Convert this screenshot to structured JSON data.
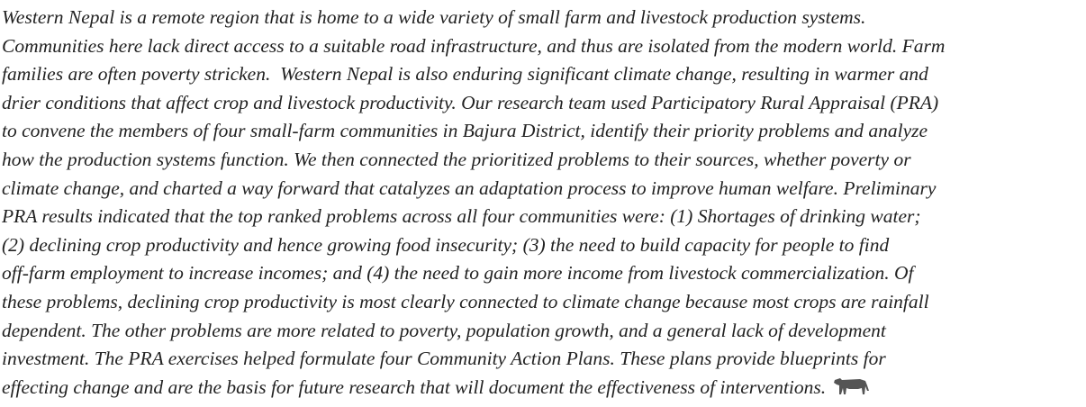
{
  "paragraph": {
    "lines": [
      "Western Nepal is a remote region that is home to a wide variety of small farm and livestock production systems.",
      "Communities here lack direct access to a suitable road infrastructure, and thus are isolated from the modern world. Farm",
      "families are often poverty stricken.  Western Nepal is also enduring significant climate change, resulting in warmer and",
      "drier conditions that affect crop and livestock productivity. Our research team used Participatory Rural Appraisal (PRA)",
      "to convene the members of four small-farm communities in Bajura District, identify their priority problems and analyze",
      "how the production systems function. We then connected the prioritized problems to their sources, whether poverty or",
      "climate change, and charted a way forward that catalyzes an adaptation process to improve human welfare. Preliminary",
      "PRA results indicated that the top ranked problems across all four communities were: (1) Shortages of drinking water;",
      "(2) declining crop productivity and hence growing food insecurity; (3) the need to build capacity for people to find",
      "off-farm employment to increase incomes; and (4) the need to gain more income from livestock commercialization. Of",
      "these problems, declining crop productivity is most clearly connected to climate change because most crops are rainfall",
      "dependent. The other problems are more related to poverty, population growth, and a general lack of development",
      "investment. The PRA exercises helped formulate four Community Action Plans. These plans provide blueprints for",
      "effecting change and are the basis for future research that will document the effectiveness of interventions."
    ]
  }
}
